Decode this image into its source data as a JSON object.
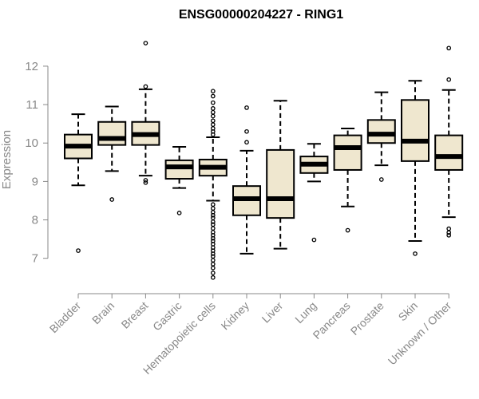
{
  "chart_data": {
    "type": "box",
    "title": "ENSG00000204227 - RING1",
    "ylabel": "Expression",
    "xlabel": "",
    "ylim": [
      6.35,
      12.85
    ],
    "yticks": [
      7,
      8,
      9,
      10,
      11,
      12
    ],
    "grid": false,
    "box_color": "#efe7cf",
    "categories": [
      "Bladder",
      "Brain",
      "Breast",
      "Gastric",
      "Hematopoietic cells",
      "Kidney",
      "Liver",
      "Lung",
      "Pancreas",
      "Prostate",
      "Skin",
      "Unknown / Other"
    ],
    "series": [
      {
        "name": "Bladder",
        "whisker_low": 8.9,
        "q1": 9.6,
        "median": 9.92,
        "q3": 10.22,
        "whisker_high": 10.75,
        "outliers": [
          7.2
        ]
      },
      {
        "name": "Brain",
        "whisker_low": 9.27,
        "q1": 9.95,
        "median": 10.12,
        "q3": 10.55,
        "whisker_high": 10.95,
        "outliers": [
          8.53
        ]
      },
      {
        "name": "Breast",
        "whisker_low": 9.15,
        "q1": 9.95,
        "median": 10.22,
        "q3": 10.55,
        "whisker_high": 11.4,
        "outliers": [
          12.6,
          11.47,
          9.03,
          8.97
        ]
      },
      {
        "name": "Gastric",
        "whisker_low": 8.83,
        "q1": 9.07,
        "median": 9.38,
        "q3": 9.55,
        "whisker_high": 9.9,
        "outliers": [
          8.18
        ]
      },
      {
        "name": "Hematopoietic cells",
        "whisker_low": 8.5,
        "q1": 9.15,
        "median": 9.37,
        "q3": 9.57,
        "whisker_high": 10.15,
        "outliers": [
          11.35,
          11.22,
          11.05,
          10.9,
          10.8,
          10.7,
          10.58,
          10.48,
          10.38,
          10.3,
          10.22,
          8.4,
          8.3,
          8.2,
          8.12,
          8.05,
          7.95,
          7.88,
          7.78,
          7.68,
          7.6,
          7.52,
          7.45,
          7.37,
          7.28,
          7.2,
          7.12,
          7.05,
          6.95,
          6.85,
          6.75,
          6.62,
          6.5
        ]
      },
      {
        "name": "Kidney",
        "whisker_low": 7.12,
        "q1": 8.12,
        "median": 8.55,
        "q3": 8.88,
        "whisker_high": 9.8,
        "outliers": [
          10.92,
          10.3,
          10.02
        ]
      },
      {
        "name": "Liver",
        "whisker_low": 7.25,
        "q1": 8.05,
        "median": 8.55,
        "q3": 9.82,
        "whisker_high": 11.1,
        "outliers": []
      },
      {
        "name": "Lung",
        "whisker_low": 9.0,
        "q1": 9.22,
        "median": 9.45,
        "q3": 9.65,
        "whisker_high": 9.98,
        "outliers": [
          7.48
        ]
      },
      {
        "name": "Pancreas",
        "whisker_low": 8.35,
        "q1": 9.3,
        "median": 9.88,
        "q3": 10.2,
        "whisker_high": 10.38,
        "outliers": [
          7.73
        ]
      },
      {
        "name": "Prostate",
        "whisker_low": 9.42,
        "q1": 10.0,
        "median": 10.23,
        "q3": 10.6,
        "whisker_high": 11.32,
        "outliers": [
          9.05
        ]
      },
      {
        "name": "Skin",
        "whisker_low": 7.45,
        "q1": 9.53,
        "median": 10.05,
        "q3": 11.12,
        "whisker_high": 11.62,
        "outliers": [
          7.12
        ]
      },
      {
        "name": "Unknown / Other",
        "whisker_low": 8.07,
        "q1": 9.3,
        "median": 9.65,
        "q3": 10.2,
        "whisker_high": 11.38,
        "outliers": [
          12.47,
          11.65,
          7.77,
          7.67,
          7.6
        ]
      }
    ]
  }
}
